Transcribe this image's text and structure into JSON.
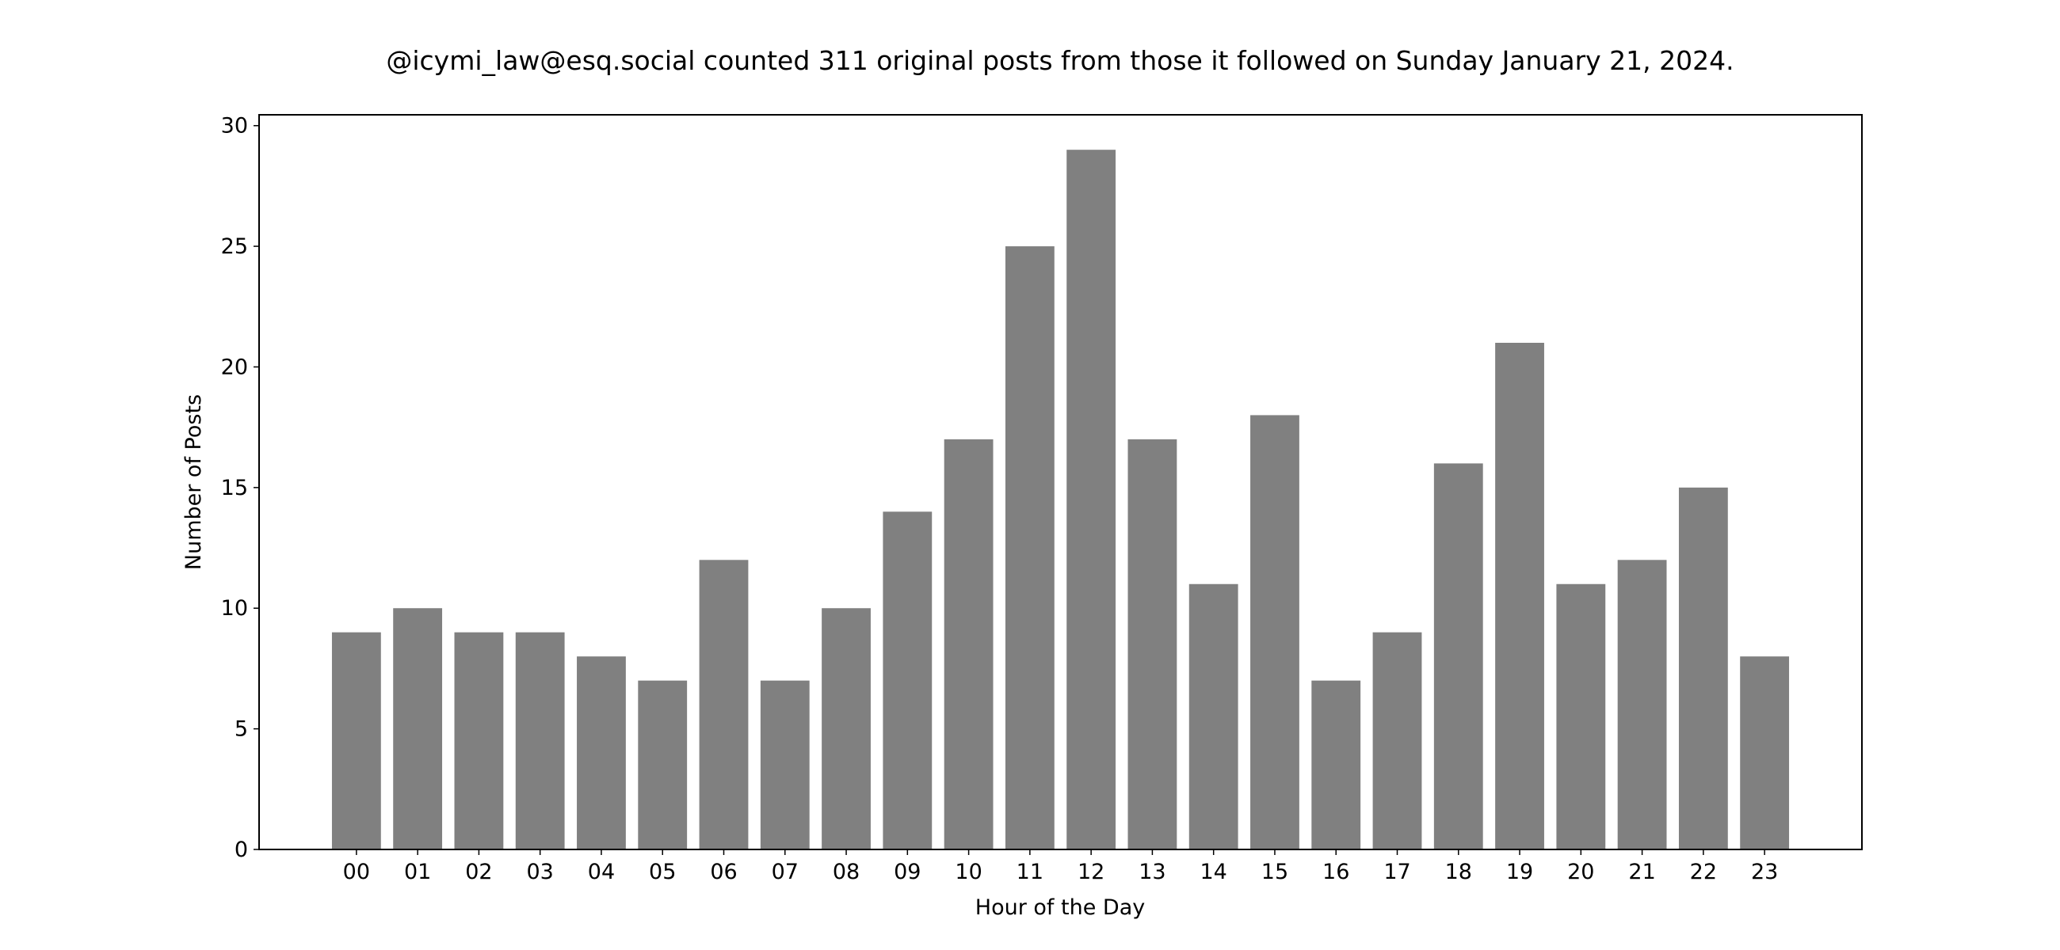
{
  "chart_data": {
    "type": "bar",
    "title": "@icymi_law@esq.social counted 311 original posts from those it followed on Sunday January 21, 2024.",
    "xlabel": "Hour of the Day",
    "ylabel": "Number of Posts",
    "categories": [
      "00",
      "01",
      "02",
      "03",
      "04",
      "05",
      "06",
      "07",
      "08",
      "09",
      "10",
      "11",
      "12",
      "13",
      "14",
      "15",
      "16",
      "17",
      "18",
      "19",
      "20",
      "21",
      "22",
      "23"
    ],
    "values": [
      9,
      10,
      9,
      9,
      8,
      7,
      12,
      7,
      10,
      14,
      17,
      25,
      29,
      17,
      11,
      18,
      7,
      9,
      16,
      21,
      11,
      12,
      15,
      8
    ],
    "yticks": [
      0,
      5,
      10,
      15,
      20,
      25,
      30
    ],
    "ylim": [
      0,
      30.45
    ],
    "grid": false,
    "bar_color": "#808080"
  }
}
